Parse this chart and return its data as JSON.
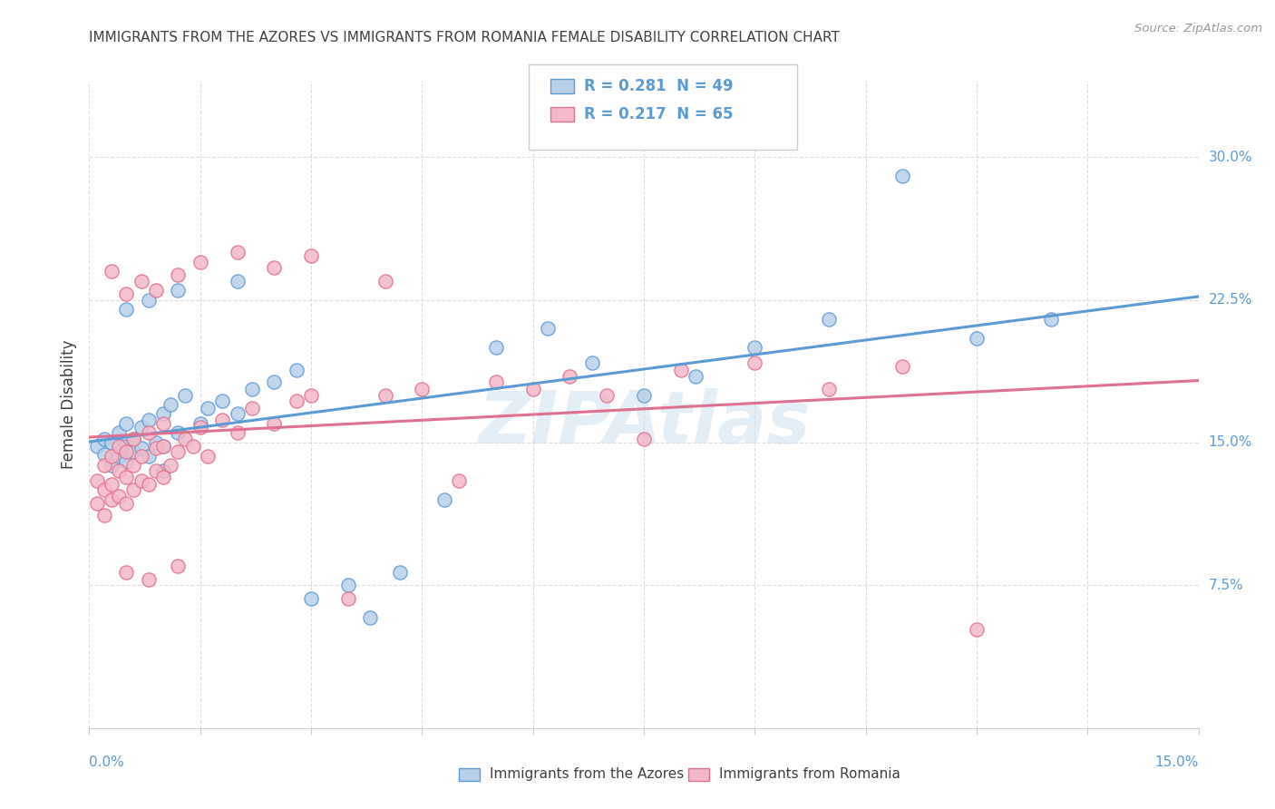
{
  "title": "IMMIGRANTS FROM THE AZORES VS IMMIGRANTS FROM ROMANIA FEMALE DISABILITY CORRELATION CHART",
  "source": "Source: ZipAtlas.com",
  "ylabel": "Female Disability",
  "right_yticks": [
    7.5,
    15.0,
    22.5,
    30.0
  ],
  "xlim": [
    0.0,
    0.15
  ],
  "ylim": [
    0.0,
    0.34
  ],
  "series1_name": "Immigrants from the Azores",
  "series1_color": "#b8d0ea",
  "series1_edge_color": "#5b9bd5",
  "series1_line_color": "#5b9bd5",
  "series1_R": 0.281,
  "series1_N": 49,
  "series2_name": "Immigrants from Romania",
  "series2_color": "#f4b8c8",
  "series2_edge_color": "#e07090",
  "series2_line_color": "#e07090",
  "series2_R": 0.217,
  "series2_N": 65,
  "watermark": "ZIPAtlas",
  "bg_color": "#ffffff",
  "grid_color": "#dddddd",
  "title_color": "#404040",
  "axis_label_color": "#5b9bd5",
  "azores_x": [
    0.001,
    0.002,
    0.002,
    0.003,
    0.003,
    0.004,
    0.004,
    0.005,
    0.005,
    0.005,
    0.006,
    0.006,
    0.007,
    0.007,
    0.008,
    0.008,
    0.009,
    0.01,
    0.01,
    0.01,
    0.011,
    0.012,
    0.013,
    0.015,
    0.016,
    0.018,
    0.02,
    0.022,
    0.025,
    0.028,
    0.03,
    0.035,
    0.038,
    0.042,
    0.048,
    0.055,
    0.062,
    0.068,
    0.075,
    0.082,
    0.09,
    0.1,
    0.11,
    0.12,
    0.13,
    0.005,
    0.008,
    0.012,
    0.02
  ],
  "azores_y": [
    0.148,
    0.152,
    0.144,
    0.15,
    0.138,
    0.143,
    0.155,
    0.148,
    0.14,
    0.16,
    0.152,
    0.145,
    0.158,
    0.147,
    0.143,
    0.162,
    0.15,
    0.148,
    0.165,
    0.135,
    0.17,
    0.155,
    0.175,
    0.16,
    0.168,
    0.172,
    0.165,
    0.178,
    0.182,
    0.188,
    0.068,
    0.075,
    0.058,
    0.082,
    0.12,
    0.2,
    0.21,
    0.192,
    0.175,
    0.185,
    0.2,
    0.215,
    0.29,
    0.205,
    0.215,
    0.22,
    0.225,
    0.23,
    0.235
  ],
  "romania_x": [
    0.001,
    0.001,
    0.002,
    0.002,
    0.002,
    0.003,
    0.003,
    0.003,
    0.004,
    0.004,
    0.004,
    0.005,
    0.005,
    0.005,
    0.006,
    0.006,
    0.006,
    0.007,
    0.007,
    0.008,
    0.008,
    0.009,
    0.009,
    0.01,
    0.01,
    0.01,
    0.011,
    0.012,
    0.013,
    0.014,
    0.015,
    0.016,
    0.018,
    0.02,
    0.022,
    0.025,
    0.028,
    0.03,
    0.035,
    0.04,
    0.045,
    0.05,
    0.055,
    0.06,
    0.065,
    0.07,
    0.075,
    0.08,
    0.09,
    0.1,
    0.003,
    0.005,
    0.007,
    0.009,
    0.012,
    0.015,
    0.02,
    0.025,
    0.03,
    0.04,
    0.005,
    0.008,
    0.012,
    0.11,
    0.12
  ],
  "romania_y": [
    0.13,
    0.118,
    0.125,
    0.112,
    0.138,
    0.128,
    0.12,
    0.143,
    0.135,
    0.122,
    0.148,
    0.132,
    0.145,
    0.118,
    0.138,
    0.125,
    0.152,
    0.13,
    0.143,
    0.128,
    0.155,
    0.135,
    0.147,
    0.132,
    0.148,
    0.16,
    0.138,
    0.145,
    0.152,
    0.148,
    0.158,
    0.143,
    0.162,
    0.155,
    0.168,
    0.16,
    0.172,
    0.175,
    0.068,
    0.175,
    0.178,
    0.13,
    0.182,
    0.178,
    0.185,
    0.175,
    0.152,
    0.188,
    0.192,
    0.178,
    0.24,
    0.228,
    0.235,
    0.23,
    0.238,
    0.245,
    0.25,
    0.242,
    0.248,
    0.235,
    0.082,
    0.078,
    0.085,
    0.19,
    0.052
  ]
}
